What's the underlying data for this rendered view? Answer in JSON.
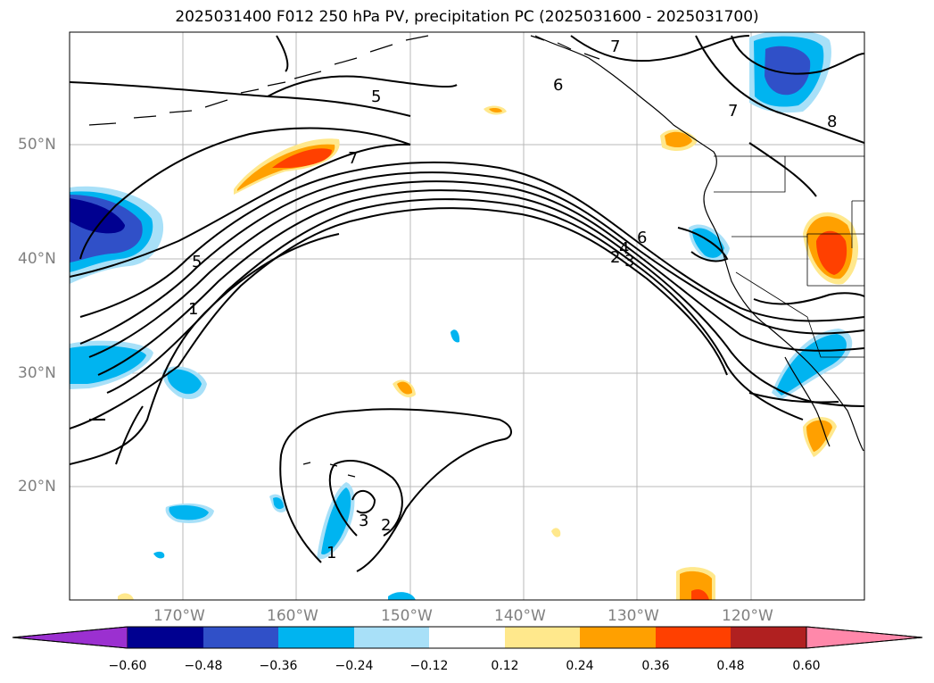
{
  "title": "2025031400 F012 250 hPa PV, precipitation PC (2025031600 - 2025031700)",
  "map": {
    "lon_ticks": [
      {
        "label": "170°W",
        "lon": -170
      },
      {
        "label": "160°W",
        "lon": -160
      },
      {
        "label": "150°W",
        "lon": -150
      },
      {
        "label": "140°W",
        "lon": -140
      },
      {
        "label": "130°W",
        "lon": -130
      },
      {
        "label": "120°W",
        "lon": -120
      }
    ],
    "lat_ticks": [
      {
        "label": "50°N",
        "lat": 50
      },
      {
        "label": "40°N",
        "lat": 40
      },
      {
        "label": "30°N",
        "lat": 30
      },
      {
        "label": "20°N",
        "lat": 20
      }
    ],
    "pv_contour_labels": [
      "5",
      "6",
      "7",
      "7",
      "8",
      "5",
      "1",
      "6",
      "4",
      "3",
      "2",
      "7",
      "3",
      "2",
      "1"
    ]
  },
  "colorbar": {
    "colors": [
      "#9b30d0",
      "#000090",
      "#3050c8",
      "#00b4f0",
      "#a8e0f8",
      "#ffffff",
      "#ffe88c",
      "#ffa000",
      "#ff4000",
      "#b02020",
      "#ff88aa"
    ],
    "ticks": [
      "−0.60",
      "−0.48",
      "−0.36",
      "−0.24",
      "−0.12",
      "0.12",
      "0.24",
      "0.36",
      "0.48",
      "0.60"
    ]
  }
}
